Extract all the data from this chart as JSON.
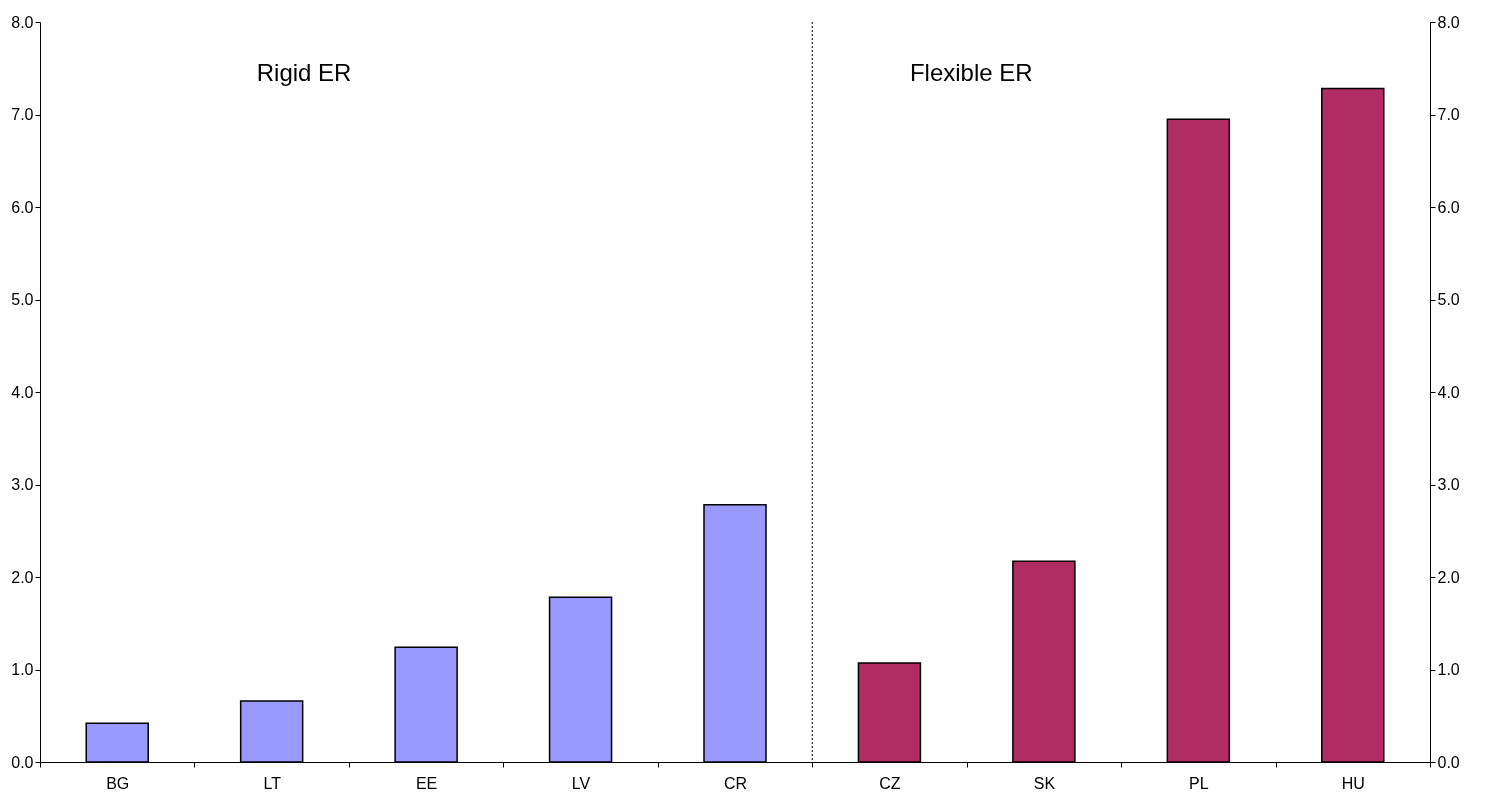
{
  "chart_data": {
    "type": "bar",
    "categories": [
      "BG",
      "LT",
      "EE",
      "LV",
      "CR",
      "CZ",
      "SK",
      "PL",
      "HU"
    ],
    "values": [
      0.42,
      0.66,
      1.24,
      1.78,
      2.78,
      1.07,
      2.17,
      6.95,
      7.28
    ],
    "colors": [
      "#9999ff",
      "#9999ff",
      "#9999ff",
      "#9999ff",
      "#9999ff",
      "#b02d63",
      "#b02d63",
      "#b02d63",
      "#b02d63"
    ],
    "ylim": [
      0,
      8
    ],
    "yticks": [
      {
        "value": 0,
        "label": "0.0"
      },
      {
        "value": 1,
        "label": "1.0"
      },
      {
        "value": 2,
        "label": "2.0"
      },
      {
        "value": 3,
        "label": "3.0"
      },
      {
        "value": 4,
        "label": "4.0"
      },
      {
        "value": 5,
        "label": "5.0"
      },
      {
        "value": 6,
        "label": "6.0"
      },
      {
        "value": 7,
        "label": "7.0"
      },
      {
        "value": 8,
        "label": "8.0"
      }
    ],
    "y2lim": [
      0,
      8
    ],
    "y2ticks": [
      {
        "value": 0,
        "label": "0.0"
      },
      {
        "value": 1,
        "label": "1.0"
      },
      {
        "value": 2,
        "label": "2.0"
      },
      {
        "value": 3,
        "label": "3.0"
      },
      {
        "value": 4,
        "label": "4.0"
      },
      {
        "value": 5,
        "label": "5.0"
      },
      {
        "value": 6,
        "label": "6.0"
      },
      {
        "value": 7,
        "label": "7.0"
      },
      {
        "value": 8,
        "label": "8.0"
      }
    ],
    "annotations": [
      "Rigid ER",
      "Flexible ER"
    ],
    "grid": false
  }
}
